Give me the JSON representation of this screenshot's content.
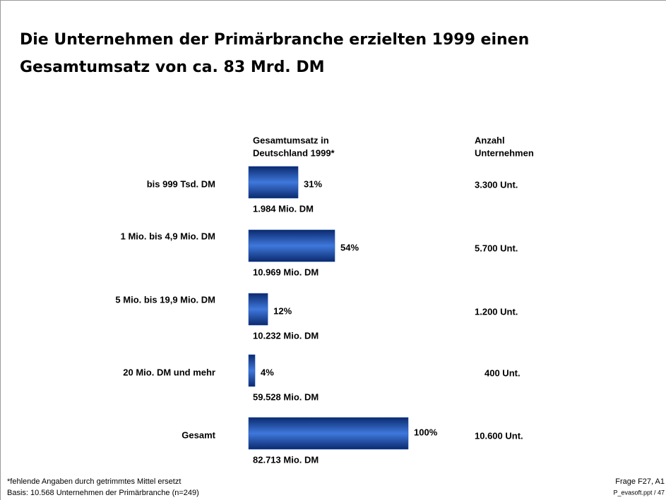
{
  "chart_data": {
    "type": "bar",
    "orientation": "horizontal",
    "title": [
      "Die Unternehmen der Primärbranche erzielten 1999 einen",
      "Gesamtumsatz von ca. 83 Mrd. DM"
    ],
    "column_headers": {
      "revenue": [
        "Gesamtumsatz in",
        "Deutschland 1999*"
      ],
      "count": [
        "Anzahl",
        "Unternehmen"
      ]
    },
    "categories": [
      "bis 999 Tsd. DM",
      "1 Mio. bis 4,9 Mio. DM",
      "5 Mio. bis 19,9 Mio. DM",
      "20 Mio. DM und mehr",
      "Gesamt"
    ],
    "values": [
      31,
      54,
      12,
      4,
      100
    ],
    "value_labels": [
      "31%",
      "54%",
      "12%",
      "4%",
      "100%"
    ],
    "revenue_labels": [
      "1.984 Mio. DM",
      "10.969 Mio. DM",
      "10.232 Mio. DM",
      "59.528 Mio. DM",
      "82.713 Mio. DM"
    ],
    "count_labels": [
      "3.300 Unt.",
      "5.700 Unt.",
      "1.200 Unt.",
      "400 Unt.",
      "10.600 Unt."
    ],
    "color": "#1f4fb0",
    "footnotes": [
      "*fehlende Angaben durch getrimmtes Mittel ersetzt",
      "Basis: 10.568 Unternehmen der Primärbranche (n=249)"
    ],
    "source": [
      "Frage F27, A1",
      "P_evasoft.ppt / 47"
    ]
  }
}
